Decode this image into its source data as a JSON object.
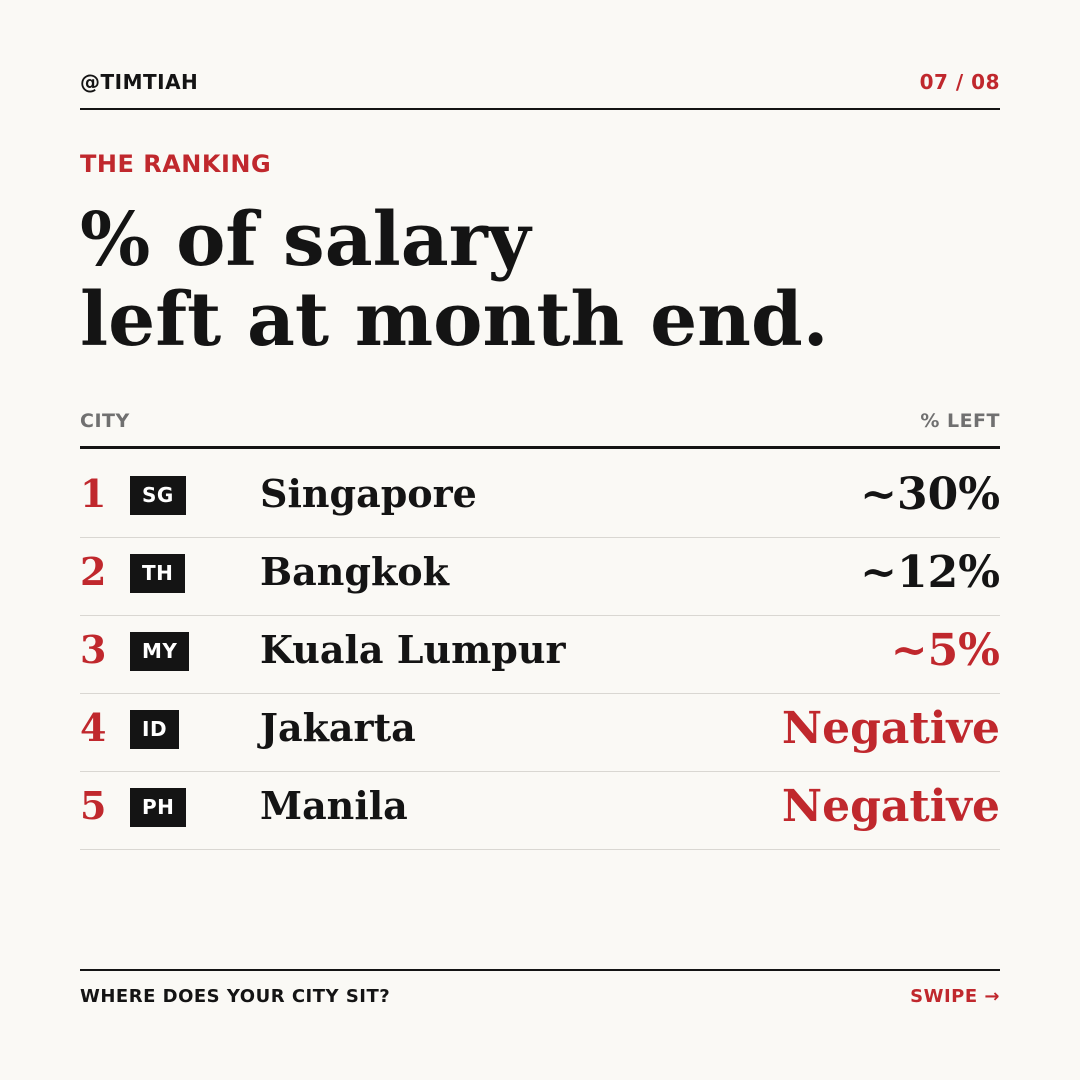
{
  "header": {
    "handle": "@TIMTIAH",
    "page_indicator": "07 / 08"
  },
  "kicker": "THE RANKING",
  "title": {
    "line1": "% of salary",
    "line2": "left at month end."
  },
  "table": {
    "columns": {
      "city": "CITY",
      "left": "% LEFT"
    },
    "rows": [
      {
        "rank": "1",
        "code": "SG",
        "city": "Singapore",
        "value": "~30%",
        "highlight": false
      },
      {
        "rank": "2",
        "code": "TH",
        "city": "Bangkok",
        "value": "~12%",
        "highlight": false
      },
      {
        "rank": "3",
        "code": "MY",
        "city": "Kuala Lumpur",
        "value": "~5%",
        "highlight": true
      },
      {
        "rank": "4",
        "code": "ID",
        "city": "Jakarta",
        "value": "Negative",
        "highlight": true
      },
      {
        "rank": "5",
        "code": "PH",
        "city": "Manila",
        "value": "Negative",
        "highlight": true
      }
    ]
  },
  "footer": {
    "prompt": "WHERE DOES YOUR CITY SIT?",
    "swipe": "SWIPE →"
  },
  "colors": {
    "background": "#faf9f5",
    "ink": "#141414",
    "accent": "#c0282d",
    "muted": "#707070",
    "rule": "#d9d7d2"
  }
}
